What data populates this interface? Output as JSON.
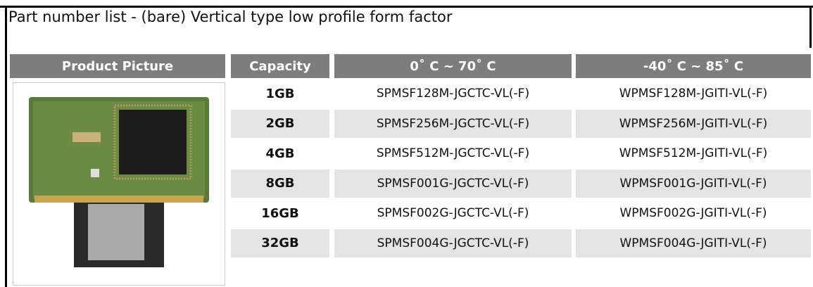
{
  "title": "Part number list - (bare) Vertical type low profile form factor",
  "table": {
    "header": [
      "Product Picture",
      "Capacity",
      "0˚ C ~ 70˚ C",
      "-40˚ C ~ 85˚ C"
    ],
    "rows": [
      [
        "1GB",
        "SPMSF128M-JGCTC-VL(-F)",
        "WPMSF128M-JGITI-VL(-F)"
      ],
      [
        "2GB",
        "SPMSF256M-JGCTC-VL(-F)",
        "WPMSF256M-JGITI-VL(-F)"
      ],
      [
        "4GB",
        "SPMSF512M-JGCTC-VL(-F)",
        "WPMSF512M-JGITI-VL(-F)"
      ],
      [
        "8GB",
        "SPMSF001G-JGCTC-VL(-F)",
        "WPMSF001G-JGITI-VL(-F)"
      ],
      [
        "16GB",
        "SPMSF002G-JGCTC-VL(-F)",
        "WPMSF002G-JGITI-VL(-F)"
      ],
      [
        "32GB",
        "SPMSF004G-JGCTC-VL(-F)",
        "WPMSF004G-JGITI-VL(-F)"
      ]
    ]
  }
}
